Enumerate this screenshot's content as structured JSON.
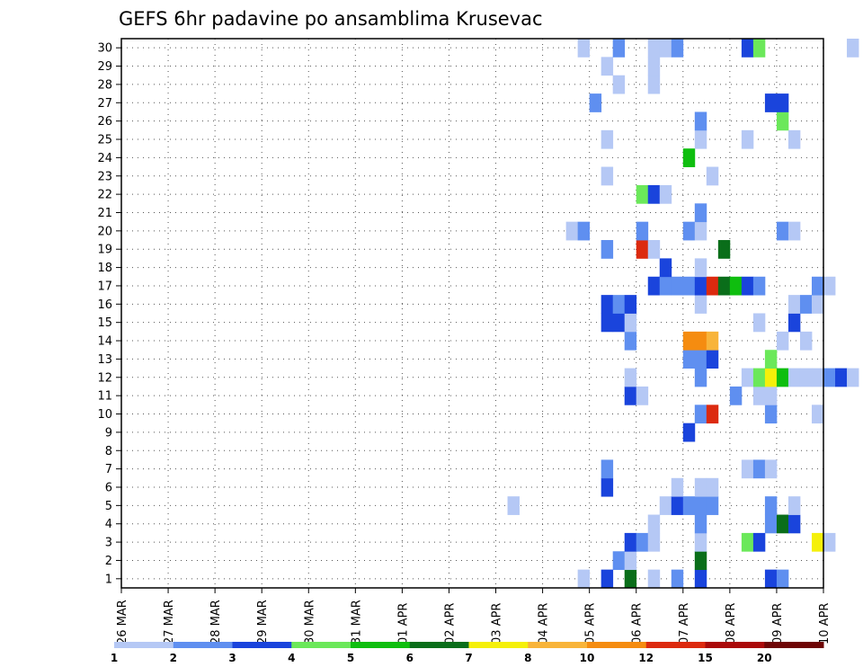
{
  "chart_data": {
    "type": "heatmap",
    "title": "GEFS 6hr padavine po ansamblima Krusevac",
    "x_labels": [
      "26 MAR",
      "27 MAR",
      "28 MAR",
      "29 MAR",
      "30 MAR",
      "31 MAR",
      "01 APR",
      "02 APR",
      "03 APR",
      "04 APR",
      "05 APR",
      "06 APR",
      "07 APR",
      "08 APR",
      "09 APR",
      "10 APR"
    ],
    "y_labels": [
      "1",
      "2",
      "3",
      "4",
      "5",
      "6",
      "7",
      "8",
      "9",
      "10",
      "11",
      "12",
      "13",
      "14",
      "15",
      "16",
      "17",
      "18",
      "19",
      "20",
      "21",
      "22",
      "23",
      "24",
      "25",
      "26",
      "27",
      "28",
      "29",
      "30"
    ],
    "x_range": [
      "26 MAR",
      "10 APR"
    ],
    "steps_per_day": 4,
    "members": 30,
    "grid": true,
    "legend": {
      "position": "bottom",
      "labels": [
        "1",
        "2",
        "3",
        "4",
        "5",
        "6",
        "7",
        "8",
        "10",
        "12",
        "15",
        "20"
      ],
      "colors": [
        "#b5c8f5",
        "#5f8ff0",
        "#1a44dc",
        "#6be85a",
        "#0fbe0f",
        "#0a6e1a",
        "#f5f00a",
        "#f8b43a",
        "#f58c10",
        "#dc2a0f",
        "#aa0a0a",
        "#6e0505"
      ]
    },
    "cells": [
      [
        39,
        1,
        1
      ],
      [
        41,
        1,
        3
      ],
      [
        43,
        1,
        6
      ],
      [
        45,
        1,
        1
      ],
      [
        47,
        1,
        2
      ],
      [
        49,
        1,
        3
      ],
      [
        55,
        1,
        3
      ],
      [
        56,
        1,
        2
      ],
      [
        76,
        1,
        1
      ],
      [
        42,
        2,
        2
      ],
      [
        43,
        2,
        1
      ],
      [
        49,
        2,
        6
      ],
      [
        67,
        2,
        1
      ],
      [
        85,
        2,
        1
      ],
      [
        86,
        2,
        3
      ],
      [
        87,
        2,
        4
      ],
      [
        43,
        3,
        3
      ],
      [
        44,
        3,
        2
      ],
      [
        45,
        3,
        1
      ],
      [
        49,
        3,
        1
      ],
      [
        53,
        3,
        4
      ],
      [
        54,
        3,
        3
      ],
      [
        59,
        3,
        7
      ],
      [
        60,
        3,
        1
      ],
      [
        73,
        3,
        2
      ],
      [
        74,
        3,
        1
      ],
      [
        45,
        4,
        1
      ],
      [
        49,
        4,
        2
      ],
      [
        55,
        4,
        2
      ],
      [
        56,
        4,
        6
      ],
      [
        57,
        4,
        3
      ],
      [
        75,
        4,
        3
      ],
      [
        76,
        4,
        2
      ],
      [
        77,
        4,
        2
      ],
      [
        78,
        4,
        3
      ],
      [
        33,
        5,
        1
      ],
      [
        46,
        5,
        1
      ],
      [
        47,
        5,
        3
      ],
      [
        48,
        5,
        2
      ],
      [
        49,
        5,
        2
      ],
      [
        50,
        5,
        2
      ],
      [
        55,
        5,
        2
      ],
      [
        57,
        5,
        1
      ],
      [
        70,
        5,
        5
      ],
      [
        41,
        6,
        3
      ],
      [
        47,
        6,
        1
      ],
      [
        49,
        6,
        1
      ],
      [
        50,
        6,
        1
      ],
      [
        69,
        6,
        5
      ],
      [
        41,
        7,
        2
      ],
      [
        53,
        7,
        1
      ],
      [
        54,
        7,
        2
      ],
      [
        55,
        7,
        1
      ],
      [
        48,
        9,
        3
      ],
      [
        79,
        9,
        1
      ],
      [
        49,
        10,
        2
      ],
      [
        50,
        10,
        10
      ],
      [
        55,
        10,
        2
      ],
      [
        59,
        10,
        1
      ],
      [
        72,
        10,
        2
      ],
      [
        73,
        10,
        1
      ],
      [
        43,
        11,
        3
      ],
      [
        44,
        11,
        1
      ],
      [
        52,
        11,
        2
      ],
      [
        54,
        11,
        1
      ],
      [
        55,
        11,
        1
      ],
      [
        66,
        11,
        8
      ],
      [
        43,
        12,
        1
      ],
      [
        49,
        12,
        2
      ],
      [
        53,
        12,
        1
      ],
      [
        54,
        12,
        4
      ],
      [
        55,
        12,
        7
      ],
      [
        56,
        12,
        5
      ],
      [
        57,
        12,
        1
      ],
      [
        58,
        12,
        1
      ],
      [
        59,
        12,
        1
      ],
      [
        60,
        12,
        2
      ],
      [
        61,
        12,
        3
      ],
      [
        62,
        12,
        1
      ],
      [
        48,
        13,
        2
      ],
      [
        49,
        13,
        2
      ],
      [
        50,
        13,
        3
      ],
      [
        55,
        13,
        4
      ],
      [
        72,
        13,
        2
      ],
      [
        73,
        13,
        5
      ],
      [
        74,
        13,
        1
      ],
      [
        87,
        13,
        2
      ],
      [
        88,
        13,
        3
      ],
      [
        89,
        13,
        1
      ],
      [
        43,
        14,
        2
      ],
      [
        48,
        14,
        9
      ],
      [
        49,
        14,
        9
      ],
      [
        50,
        14,
        8
      ],
      [
        56,
        14,
        1
      ],
      [
        58,
        14,
        1
      ],
      [
        79,
        14,
        1
      ],
      [
        80,
        14,
        1
      ],
      [
        41,
        15,
        3
      ],
      [
        42,
        15,
        3
      ],
      [
        43,
        15,
        1
      ],
      [
        54,
        15,
        1
      ],
      [
        57,
        15,
        3
      ],
      [
        68,
        15,
        1
      ],
      [
        76,
        15,
        1
      ],
      [
        88,
        15,
        1
      ],
      [
        89,
        15,
        2
      ],
      [
        41,
        16,
        3
      ],
      [
        42,
        16,
        2
      ],
      [
        43,
        16,
        3
      ],
      [
        49,
        16,
        1
      ],
      [
        57,
        16,
        1
      ],
      [
        58,
        16,
        2
      ],
      [
        59,
        16,
        1
      ],
      [
        76,
        16,
        2
      ],
      [
        45,
        17,
        3
      ],
      [
        46,
        17,
        2
      ],
      [
        47,
        17,
        2
      ],
      [
        48,
        17,
        2
      ],
      [
        49,
        17,
        3
      ],
      [
        50,
        17,
        10
      ],
      [
        51,
        17,
        6
      ],
      [
        52,
        17,
        5
      ],
      [
        53,
        17,
        3
      ],
      [
        54,
        17,
        2
      ],
      [
        59,
        17,
        2
      ],
      [
        60,
        17,
        1
      ],
      [
        76,
        17,
        2
      ],
      [
        46,
        18,
        3
      ],
      [
        49,
        18,
        1
      ],
      [
        88,
        18,
        5
      ],
      [
        89,
        18,
        1
      ],
      [
        41,
        19,
        2
      ],
      [
        44,
        19,
        10
      ],
      [
        45,
        19,
        1
      ],
      [
        51,
        19,
        6
      ],
      [
        76,
        19,
        2
      ],
      [
        81,
        19,
        3
      ],
      [
        82,
        19,
        2
      ],
      [
        83,
        19,
        6
      ],
      [
        84,
        19,
        10
      ],
      [
        85,
        19,
        1
      ],
      [
        38,
        20,
        1
      ],
      [
        39,
        20,
        2
      ],
      [
        44,
        20,
        2
      ],
      [
        48,
        20,
        2
      ],
      [
        49,
        20,
        1
      ],
      [
        56,
        20,
        2
      ],
      [
        57,
        20,
        1
      ],
      [
        70,
        20,
        2
      ],
      [
        49,
        21,
        2
      ],
      [
        89,
        21,
        3
      ],
      [
        44,
        22,
        4
      ],
      [
        45,
        22,
        3
      ],
      [
        46,
        22,
        1
      ],
      [
        78,
        22,
        1
      ],
      [
        41,
        23,
        1
      ],
      [
        50,
        23,
        1
      ],
      [
        48,
        24,
        5
      ],
      [
        89,
        24,
        2
      ],
      [
        41,
        25,
        1
      ],
      [
        49,
        25,
        1
      ],
      [
        53,
        25,
        1
      ],
      [
        57,
        25,
        1
      ],
      [
        72,
        25,
        1
      ],
      [
        73,
        25,
        5
      ],
      [
        74,
        25,
        2
      ],
      [
        75,
        25,
        2
      ],
      [
        49,
        26,
        2
      ],
      [
        56,
        26,
        4
      ],
      [
        70,
        26,
        2
      ],
      [
        78,
        26,
        2
      ],
      [
        81,
        26,
        2
      ],
      [
        84,
        26,
        2
      ],
      [
        40,
        27,
        2
      ],
      [
        55,
        27,
        3
      ],
      [
        56,
        27,
        3
      ],
      [
        71,
        27,
        1
      ],
      [
        42,
        28,
        1
      ],
      [
        45,
        28,
        1
      ],
      [
        65,
        28,
        1
      ],
      [
        41,
        29,
        1
      ],
      [
        45,
        29,
        1
      ],
      [
        39,
        30,
        1
      ],
      [
        42,
        30,
        2
      ],
      [
        45,
        30,
        1
      ],
      [
        46,
        30,
        1
      ],
      [
        47,
        30,
        2
      ],
      [
        53,
        30,
        3
      ],
      [
        54,
        30,
        4
      ],
      [
        62,
        30,
        1
      ],
      [
        70,
        30,
        8
      ],
      [
        82,
        30,
        1
      ],
      [
        91,
        30,
        1
      ]
    ]
  }
}
